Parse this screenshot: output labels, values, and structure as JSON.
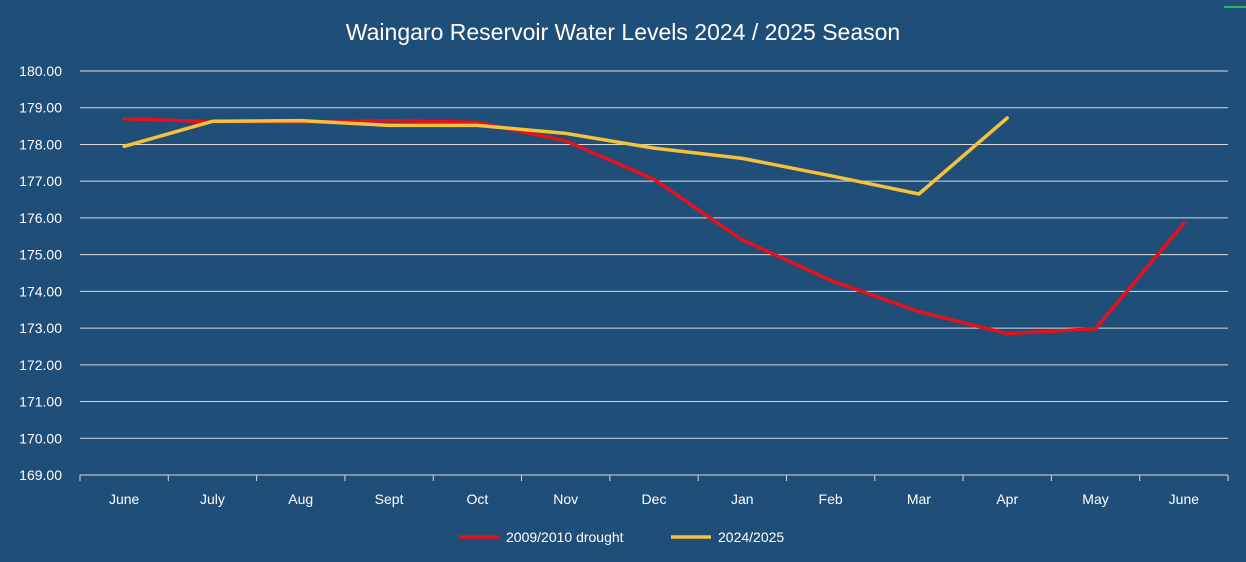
{
  "chart_data": {
    "type": "line",
    "title": "Waingaro Reservoir Water Levels  2024 / 2025 Season",
    "xlabel": "",
    "ylabel": "",
    "categories": [
      "June",
      "July",
      "Aug",
      "Sept",
      "Oct",
      "Nov",
      "Dec",
      "Jan",
      "Feb",
      "Mar",
      "Apr",
      "May",
      "June"
    ],
    "ylim": [
      169,
      180
    ],
    "yticks": [
      "169.00",
      "170.00",
      "171.00",
      "172.00",
      "173.00",
      "174.00",
      "175.00",
      "176.00",
      "177.00",
      "178.00",
      "179.00",
      "180.00"
    ],
    "grid": true,
    "legend_position": "bottom",
    "series": [
      {
        "name": "2009/2010 drought",
        "color": "#e8101a",
        "values": [
          178.7,
          178.62,
          178.6,
          178.65,
          178.6,
          178.1,
          177.05,
          175.4,
          174.3,
          173.45,
          172.85,
          172.98,
          175.85
        ]
      },
      {
        "name": "2024/2025",
        "color": "#f5c33b",
        "values": [
          177.95,
          178.63,
          178.65,
          178.52,
          178.52,
          178.3,
          177.9,
          177.62,
          177.15,
          176.65,
          178.72,
          null,
          null
        ]
      }
    ]
  }
}
